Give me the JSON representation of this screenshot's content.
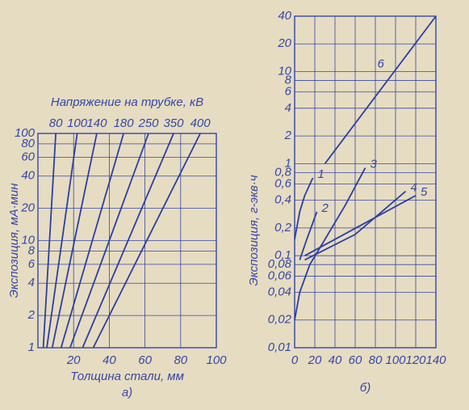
{
  "chart_data": [
    {
      "type": "line",
      "title": "Напряжение на трубке, кВ",
      "xlabel": "Толщина стали, мм",
      "ylabel": "Экспозиция, мА·мин",
      "caption": "а)",
      "xlim": [
        0,
        100
      ],
      "xticks": [
        20,
        40,
        60,
        80,
        100
      ],
      "ylim": [
        1,
        100
      ],
      "yticks": [
        1,
        2,
        4,
        6,
        8,
        10,
        20,
        40,
        60,
        80,
        100
      ],
      "log_y": true,
      "grid": true,
      "color": "#2b3fa0",
      "series": [
        {
          "name": "80",
          "x": [
            3,
            10
          ],
          "values": [
            1,
            100
          ]
        },
        {
          "name": "100",
          "x": [
            5,
            22
          ],
          "values": [
            1,
            100
          ]
        },
        {
          "name": "140",
          "x": [
            8,
            33
          ],
          "values": [
            1,
            100
          ]
        },
        {
          "name": "180",
          "x": [
            13,
            48
          ],
          "values": [
            1,
            100
          ]
        },
        {
          "name": "250",
          "x": [
            18,
            62
          ],
          "values": [
            1,
            100
          ]
        },
        {
          "name": "350",
          "x": [
            25,
            76
          ],
          "values": [
            1,
            100
          ]
        },
        {
          "name": "400",
          "x": [
            31,
            91
          ],
          "values": [
            1,
            100
          ]
        }
      ]
    },
    {
      "type": "line",
      "ylabel": "Экспозиция, г-экв·ч",
      "caption": "б)",
      "xlim": [
        0,
        140
      ],
      "xticks": [
        0,
        20,
        40,
        60,
        80,
        100,
        120,
        140
      ],
      "ylim": [
        0.01,
        40
      ],
      "log_y": true,
      "grid": true,
      "color": "#2b3fa0",
      "yticks": [
        {
          "value": 0.01,
          "label": "0,01"
        },
        {
          "value": 0.02,
          "label": "0,02"
        },
        {
          "value": 0.04,
          "label": "0,04"
        },
        {
          "value": 0.06,
          "label": "0,06"
        },
        {
          "value": 0.08,
          "label": "0,08"
        },
        {
          "value": 0.1,
          "label": "0,1"
        },
        {
          "value": 0.2,
          "label": "0,2"
        },
        {
          "value": 0.4,
          "label": "0,4"
        },
        {
          "value": 0.6,
          "label": "0,6"
        },
        {
          "value": 0.8,
          "label": "0,8"
        },
        1,
        2,
        4,
        6,
        8,
        10,
        20,
        40
      ],
      "series": [
        {
          "name": "1",
          "x": [
            0,
            5,
            10,
            18
          ],
          "values": [
            0.15,
            0.3,
            0.45,
            0.7
          ]
        },
        {
          "name": "2",
          "x": [
            5,
            12,
            22
          ],
          "values": [
            0.09,
            0.15,
            0.3
          ]
        },
        {
          "name": "3",
          "x": [
            0,
            5,
            15,
            30,
            50,
            70
          ],
          "values": [
            0.02,
            0.04,
            0.08,
            0.15,
            0.35,
            0.9
          ]
        },
        {
          "name": "4",
          "x": [
            10,
            60,
            110
          ],
          "values": [
            0.09,
            0.17,
            0.5
          ]
        },
        {
          "name": "5",
          "x": [
            10,
            120
          ],
          "values": [
            0.1,
            0.45
          ]
        },
        {
          "name": "6",
          "x": [
            30,
            140
          ],
          "values": [
            1,
            40
          ]
        }
      ]
    }
  ]
}
